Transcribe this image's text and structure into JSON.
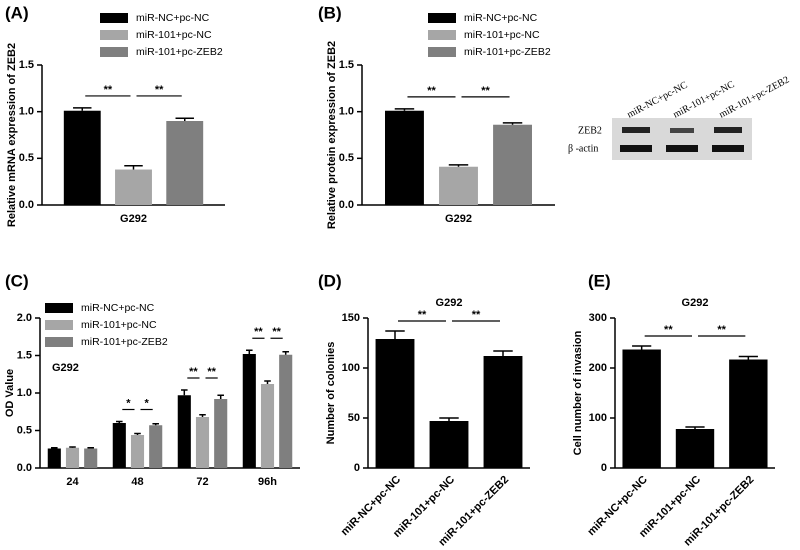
{
  "chart_data": [
    {
      "type": "bar",
      "panel_label": "(A)",
      "ylabel": "Relative mRNA expression of ZEB2",
      "categories": [
        "G292"
      ],
      "series": [
        {
          "name": "miR-NC+pc-NC",
          "color": "#000000",
          "values": [
            1.01
          ],
          "errors": [
            0.03
          ]
        },
        {
          "name": "miR-101+pc-NC",
          "color": "#a6a6a6",
          "values": [
            0.38
          ],
          "errors": [
            0.04
          ]
        },
        {
          "name": "miR-101+pc-ZEB2",
          "color": "#7f7f7f",
          "values": [
            0.9
          ],
          "errors": [
            0.03
          ]
        }
      ],
      "ylim": [
        0,
        1.5
      ],
      "yticks": [
        {
          "value": 0,
          "label": "0.0"
        },
        {
          "value": 0.5,
          "label": "0.5"
        },
        {
          "value": 1,
          "label": "1.0"
        },
        {
          "value": 1.5,
          "label": "1.5"
        }
      ],
      "annotations": [
        [
          "**",
          "**"
        ]
      ]
    },
    {
      "type": "bar",
      "panel_label": "(B)",
      "ylabel": "Relative protein expression of ZEB2",
      "categories": [
        "G292"
      ],
      "series": [
        {
          "name": "miR-NC+pc-NC",
          "color": "#000000",
          "values": [
            1.01
          ],
          "errors": [
            0.02
          ]
        },
        {
          "name": "miR-101+pc-NC",
          "color": "#a6a6a6",
          "values": [
            0.41
          ],
          "errors": [
            0.02
          ]
        },
        {
          "name": "miR-101+pc-ZEB2",
          "color": "#7f7f7f",
          "values": [
            0.86
          ],
          "errors": [
            0.02
          ]
        }
      ],
      "ylim": [
        0,
        1.5
      ],
      "yticks": [
        {
          "value": 0,
          "label": "0.0"
        },
        {
          "value": 0.5,
          "label": "0.5"
        },
        {
          "value": 1,
          "label": "1.0"
        },
        {
          "value": 1.5,
          "label": "1.5"
        }
      ],
      "annotations": [
        [
          "**",
          "**"
        ]
      ],
      "blot": {
        "lanes": [
          "miR-NC+pc-NC",
          "miR-101+pc-NC",
          "miR-101+pc-ZEB2"
        ],
        "rows": [
          "ZEB2",
          "β -actin"
        ]
      }
    },
    {
      "type": "bar",
      "panel_label": "(C)",
      "title": "G292",
      "ylabel": "OD Value",
      "categories": [
        "24",
        "48",
        "72",
        "96h"
      ],
      "series": [
        {
          "name": "miR-NC+pc-NC",
          "color": "#000000",
          "values": [
            0.26,
            0.6,
            0.97,
            1.52
          ],
          "errors": [
            0.01,
            0.02,
            0.07,
            0.05
          ]
        },
        {
          "name": "miR-101+pc-NC",
          "color": "#a6a6a6",
          "values": [
            0.27,
            0.44,
            0.68,
            1.12
          ],
          "errors": [
            0.01,
            0.02,
            0.03,
            0.04
          ]
        },
        {
          "name": "miR-101+pc-ZEB2",
          "color": "#7f7f7f",
          "values": [
            0.26,
            0.57,
            0.92,
            1.51
          ],
          "errors": [
            0.01,
            0.02,
            0.05,
            0.04
          ]
        }
      ],
      "ylim": [
        0,
        2
      ],
      "yticks": [
        {
          "value": 0,
          "label": "0.0"
        },
        {
          "value": 0.5,
          "label": "0.5"
        },
        {
          "value": 1,
          "label": "1.0"
        },
        {
          "value": 1.5,
          "label": "1.5"
        },
        {
          "value": 2,
          "label": "2.0"
        }
      ],
      "annotations": [
        [],
        [
          "*",
          "*"
        ],
        [
          "**",
          "**"
        ],
        [
          "**",
          "**"
        ]
      ]
    },
    {
      "type": "bar",
      "panel_label": "(D)",
      "title": "G292",
      "ylabel": "Number of colonies",
      "categories": [
        "miR-NC+pc-NC",
        "miR-101+pc-NC",
        "miR-101+pc-ZEB2"
      ],
      "color": "#000000",
      "values": [
        129,
        47,
        112
      ],
      "errors": [
        8,
        3,
        5
      ],
      "ylim": [
        0,
        150
      ],
      "yticks": [
        0,
        50,
        100,
        150
      ],
      "annotations": [
        "**",
        "**"
      ]
    },
    {
      "type": "bar",
      "panel_label": "(E)",
      "title": "G292",
      "ylabel": "Cell number of invasion",
      "categories": [
        "miR-NC+pc-NC",
        "miR-101+pc-NC",
        "miR-101+pc-ZEB2"
      ],
      "color": "#000000",
      "values": [
        237,
        78,
        217
      ],
      "errors": [
        7,
        4,
        6
      ],
      "ylim": [
        0,
        300
      ],
      "yticks": [
        0,
        100,
        200,
        300
      ],
      "annotations": [
        "**",
        "**"
      ]
    }
  ]
}
